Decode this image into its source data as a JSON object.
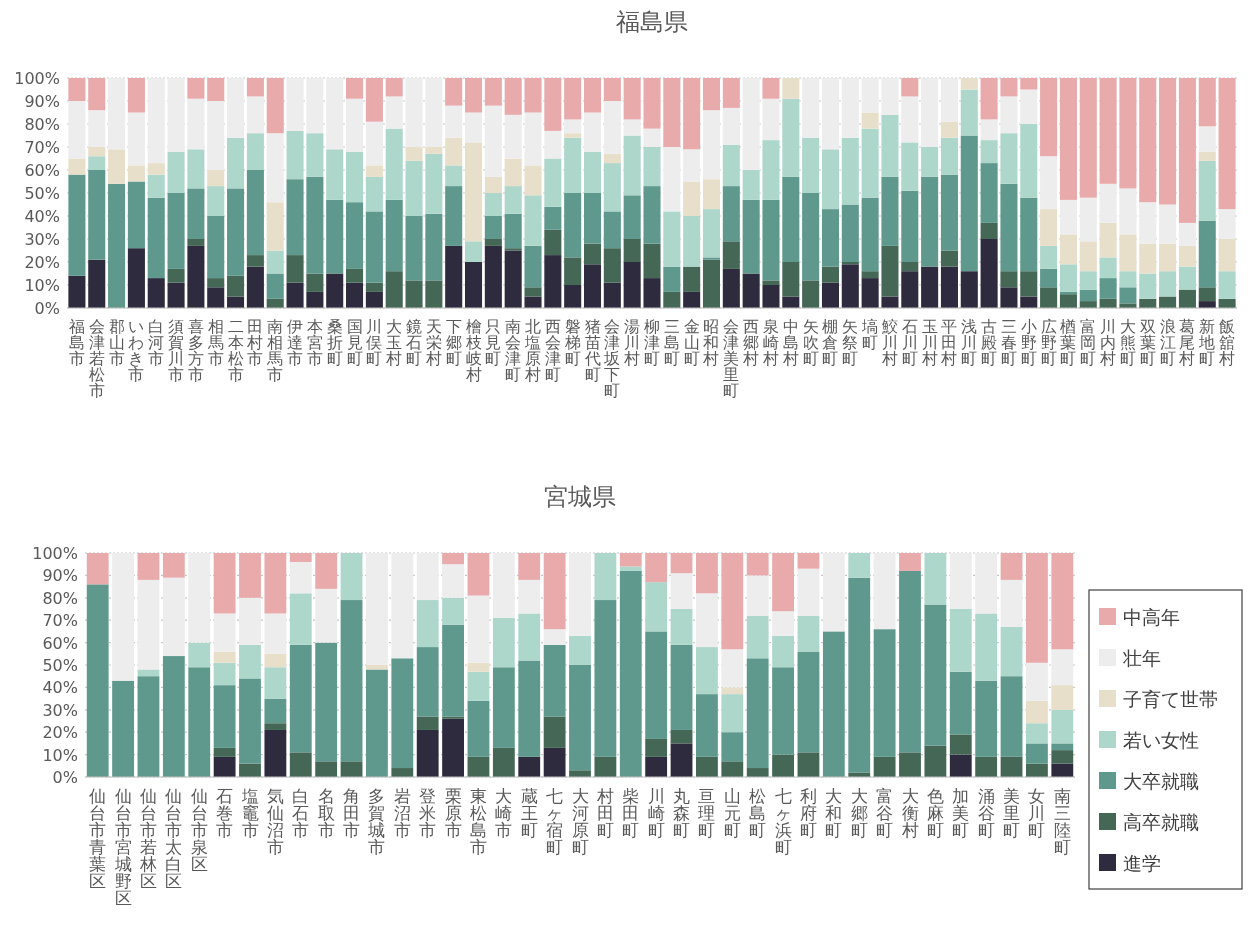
{
  "chart_data": [
    {
      "type": "bar",
      "title": "福島県",
      "stacked": true,
      "grid": "y",
      "ylim": [
        0,
        100
      ],
      "yticks": [
        {
          "value": 0,
          "label": "0%"
        },
        {
          "value": 10,
          "label": "10%"
        },
        {
          "value": 20,
          "label": "20%"
        },
        {
          "value": 30,
          "label": "30%"
        },
        {
          "value": 40,
          "label": "40%"
        },
        {
          "value": 50,
          "label": "50%"
        },
        {
          "value": 60,
          "label": "60%"
        },
        {
          "value": 70,
          "label": "70%"
        },
        {
          "value": 80,
          "label": "80%"
        },
        {
          "value": 90,
          "label": "90%"
        },
        {
          "value": 100,
          "label": "100%"
        }
      ],
      "categories": [
        "福島市",
        "会津若松市",
        "郡山市",
        "いわき市",
        "白河市",
        "須賀川市",
        "喜多方市",
        "相馬市",
        "二本松市",
        "田村市",
        "南相馬市",
        "伊達市",
        "本宮市",
        "桑折町",
        "国見町",
        "川俣町",
        "大玉村",
        "鏡石町",
        "天栄村",
        "下郷町",
        "檜枝岐村",
        "只見町",
        "南会津町",
        "北塩原村",
        "西会津町",
        "磐梯町",
        "猪苗代町",
        "会津坂下町",
        "湯川村",
        "柳津町",
        "三島町",
        "金山町",
        "昭和村",
        "会津美里町",
        "西郷村",
        "泉崎村",
        "中島村",
        "矢吹町",
        "棚倉町",
        "矢祭町",
        "塙町",
        "鮫川村",
        "石川町",
        "玉川村",
        "平田村",
        "浅川町",
        "古殿町",
        "三春町",
        "小野町",
        "広野町",
        "楢葉町",
        "富岡町",
        "川内村",
        "大熊町",
        "双葉町",
        "浪江町",
        "葛尾村",
        "新地町",
        "飯舘村"
      ],
      "series": [
        {
          "color": "#2e2b3f",
          "values": [
            14,
            21,
            0,
            26,
            13,
            11,
            27,
            9,
            5,
            18,
            0,
            11,
            7,
            15,
            11,
            7,
            0,
            0,
            0,
            27,
            20,
            27,
            25,
            5,
            23,
            10,
            19,
            11,
            20,
            13,
            0,
            7,
            0,
            17,
            15,
            10,
            5,
            0,
            11,
            19,
            13,
            5,
            16,
            18,
            18,
            16,
            30,
            9,
            5,
            0,
            0,
            0,
            0,
            0,
            0,
            0,
            0,
            3,
            0
          ]
        },
        {
          "color": "#446756",
          "values": [
            0,
            0,
            0,
            0,
            0,
            6,
            3,
            4,
            9,
            5,
            4,
            12,
            8,
            0,
            6,
            4,
            16,
            12,
            12,
            0,
            0,
            3,
            1,
            4,
            11,
            12,
            9,
            15,
            10,
            15,
            7,
            11,
            21,
            12,
            0,
            2,
            15,
            12,
            7,
            1,
            3,
            22,
            4,
            0,
            7,
            0,
            7,
            7,
            11,
            9,
            6,
            3,
            4,
            2,
            4,
            5,
            8,
            6,
            4
          ]
        },
        {
          "color": "#5f998e",
          "values": [
            44,
            39,
            54,
            29,
            35,
            33,
            22,
            27,
            38,
            37,
            11,
            33,
            42,
            32,
            29,
            31,
            31,
            28,
            29,
            26,
            0,
            10,
            15,
            18,
            10,
            28,
            22,
            16,
            19,
            25,
            11,
            0,
            1,
            24,
            32,
            35,
            37,
            38,
            25,
            25,
            32,
            30,
            31,
            39,
            33,
            59,
            26,
            38,
            32,
            8,
            1,
            5,
            9,
            7,
            0,
            0,
            0,
            29,
            0
          ]
        },
        {
          "color": "#aed7cc",
          "values": [
            0,
            6,
            0,
            0,
            10,
            18,
            17,
            13,
            22,
            16,
            10,
            21,
            19,
            22,
            22,
            15,
            31,
            24,
            26,
            9,
            9,
            10,
            12,
            22,
            21,
            24,
            18,
            21,
            26,
            17,
            24,
            22,
            21,
            18,
            13,
            26,
            34,
            24,
            26,
            29,
            30,
            27,
            21,
            13,
            16,
            20,
            10,
            22,
            32,
            10,
            12,
            8,
            9,
            7,
            11,
            11,
            10,
            26,
            12
          ]
        },
        {
          "color": "#e8dfca",
          "values": [
            7,
            4,
            15,
            7,
            5,
            0,
            0,
            7,
            0,
            0,
            21,
            0,
            0,
            0,
            0,
            5,
            0,
            6,
            3,
            12,
            43,
            7,
            12,
            13,
            0,
            2,
            0,
            4,
            0,
            0,
            0,
            15,
            13,
            0,
            0,
            0,
            9,
            0,
            0,
            0,
            7,
            0,
            0,
            0,
            7,
            5,
            0,
            0,
            0,
            16,
            13,
            13,
            15,
            16,
            13,
            12,
            9,
            4,
            14
          ]
        },
        {
          "color": "#ededed",
          "values": [
            25,
            16,
            31,
            23,
            37,
            32,
            22,
            30,
            26,
            16,
            30,
            23,
            24,
            31,
            23,
            19,
            14,
            30,
            30,
            14,
            13,
            31,
            19,
            23,
            12,
            6,
            17,
            23,
            7,
            8,
            28,
            14,
            30,
            16,
            40,
            18,
            0,
            26,
            31,
            26,
            15,
            16,
            20,
            30,
            19,
            0,
            9,
            16,
            15,
            23,
            15,
            19,
            17,
            20,
            18,
            17,
            10,
            11,
            13
          ]
        },
        {
          "color": "#e8aaab",
          "values": [
            10,
            14,
            0,
            15,
            0,
            0,
            9,
            10,
            0,
            8,
            24,
            0,
            0,
            0,
            9,
            19,
            8,
            0,
            0,
            12,
            15,
            12,
            16,
            15,
            23,
            18,
            15,
            10,
            18,
            22,
            30,
            31,
            14,
            13,
            0,
            9,
            0,
            0,
            0,
            0,
            0,
            0,
            8,
            0,
            0,
            0,
            18,
            8,
            5,
            34,
            53,
            52,
            46,
            48,
            54,
            55,
            63,
            21,
            57
          ]
        }
      ]
    },
    {
      "type": "bar",
      "title": "宮城県",
      "stacked": true,
      "grid": "y",
      "legend": "right",
      "ylim": [
        0,
        100
      ],
      "yticks": [
        {
          "value": 0,
          "label": "0%"
        },
        {
          "value": 10,
          "label": "10%"
        },
        {
          "value": 20,
          "label": "20%"
        },
        {
          "value": 30,
          "label": "30%"
        },
        {
          "value": 40,
          "label": "40%"
        },
        {
          "value": 50,
          "label": "50%"
        },
        {
          "value": 60,
          "label": "60%"
        },
        {
          "value": 70,
          "label": "70%"
        },
        {
          "value": 80,
          "label": "80%"
        },
        {
          "value": 90,
          "label": "90%"
        },
        {
          "value": 100,
          "label": "100%"
        }
      ],
      "categories": [
        "仙台市青葉区",
        "仙台市宮城野区",
        "仙台市若林区",
        "仙台市太白区",
        "仙台市泉区",
        "石巻市",
        "塩竈市",
        "気仙沼市",
        "白石市",
        "名取市",
        "角田市",
        "多賀城市",
        "岩沼市",
        "登米市",
        "栗原市",
        "東松島市",
        "大崎市",
        "蔵王町",
        "七ヶ宿町",
        "大河原町",
        "村田町",
        "柴田町",
        "川崎町",
        "丸森町",
        "亘理町",
        "山元町",
        "松島町",
        "七ヶ浜町",
        "利府町",
        "大和町",
        "大郷町",
        "富谷町",
        "大衡村",
        "色麻町",
        "加美町",
        "涌谷町",
        "美里町",
        "女川町",
        "南三陸町"
      ],
      "series": [
        {
          "name": "進学",
          "color": "#2e2b3f",
          "values": [
            0,
            0,
            0,
            0,
            0,
            9,
            0,
            21,
            0,
            0,
            0,
            0,
            0,
            21,
            26,
            0,
            0,
            9,
            13,
            0,
            0,
            0,
            9,
            15,
            0,
            0,
            0,
            0,
            0,
            0,
            0,
            0,
            0,
            0,
            10,
            0,
            0,
            0,
            6
          ]
        },
        {
          "name": "高卒就職",
          "color": "#446756",
          "values": [
            0,
            0,
            0,
            0,
            0,
            4,
            6,
            3,
            11,
            7,
            7,
            0,
            4,
            6,
            1,
            9,
            13,
            0,
            14,
            3,
            9,
            0,
            8,
            6,
            9,
            7,
            4,
            10,
            11,
            0,
            2,
            9,
            11,
            14,
            9,
            9,
            9,
            6,
            6
          ]
        },
        {
          "name": "大卒就職",
          "color": "#5f998e",
          "values": [
            86,
            43,
            45,
            54,
            49,
            28,
            38,
            11,
            48,
            53,
            72,
            48,
            49,
            31,
            41,
            25,
            36,
            43,
            32,
            47,
            70,
            92,
            48,
            38,
            28,
            13,
            49,
            39,
            45,
            65,
            87,
            57,
            81,
            63,
            28,
            34,
            36,
            9,
            3
          ]
        },
        {
          "name": "若い女性",
          "color": "#aed7cc",
          "values": [
            0,
            0,
            3,
            0,
            11,
            10,
            15,
            14,
            23,
            0,
            21,
            0,
            0,
            21,
            12,
            13,
            22,
            21,
            0,
            13,
            21,
            2,
            22,
            16,
            21,
            17,
            19,
            14,
            16,
            0,
            11,
            0,
            0,
            23,
            28,
            30,
            22,
            9,
            15
          ]
        },
        {
          "name": "子育て世帯",
          "color": "#e8dfca",
          "values": [
            0,
            0,
            0,
            0,
            0,
            5,
            0,
            6,
            0,
            0,
            0,
            2,
            0,
            0,
            0,
            4,
            0,
            0,
            0,
            0,
            0,
            0,
            0,
            0,
            0,
            3,
            0,
            0,
            0,
            0,
            0,
            0,
            0,
            0,
            0,
            0,
            0,
            10,
            11
          ]
        },
        {
          "name": "壮年",
          "color": "#ededed",
          "values": [
            0,
            57,
            40,
            35,
            40,
            17,
            21,
            18,
            14,
            24,
            0,
            50,
            47,
            21,
            15,
            30,
            29,
            15,
            7,
            37,
            0,
            0,
            0,
            16,
            24,
            17,
            18,
            11,
            21,
            35,
            0,
            34,
            0,
            0,
            25,
            27,
            21,
            17,
            16
          ]
        },
        {
          "name": "中高年",
          "color": "#e8aaab",
          "values": [
            14,
            0,
            12,
            11,
            0,
            27,
            20,
            27,
            4,
            16,
            0,
            0,
            0,
            0,
            5,
            19,
            0,
            12,
            34,
            0,
            0,
            6,
            13,
            9,
            18,
            43,
            10,
            26,
            7,
            0,
            0,
            0,
            8,
            0,
            0,
            0,
            12,
            49,
            43
          ]
        }
      ]
    }
  ]
}
